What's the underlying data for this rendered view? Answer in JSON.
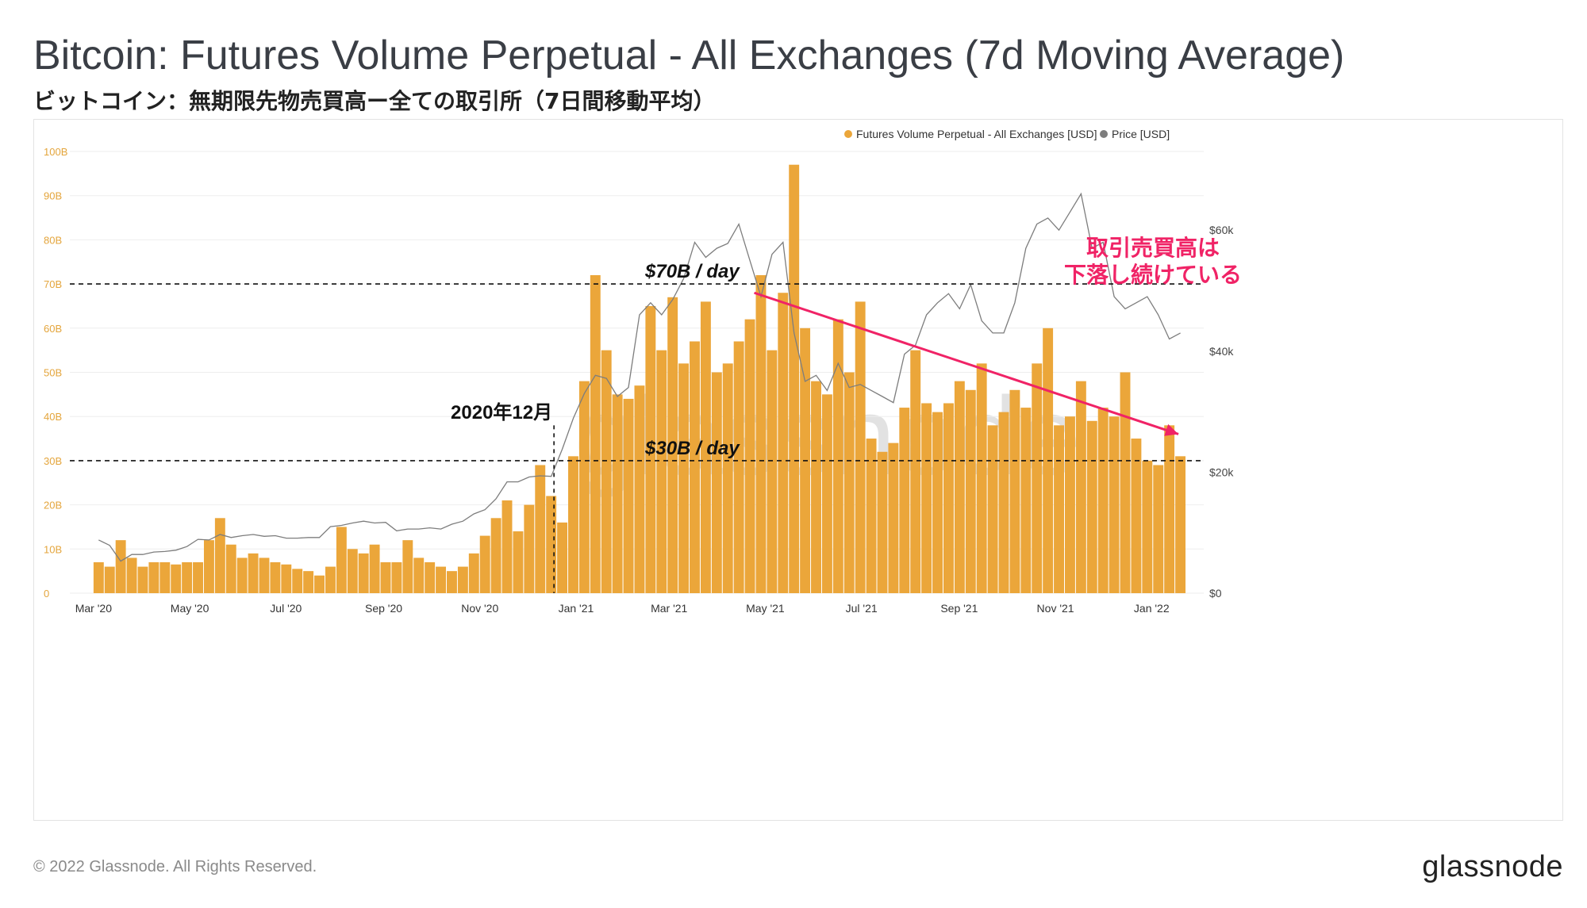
{
  "title": "Bitcoin: Futures Volume Perpetual - All Exchanges (7d Moving Average)",
  "subtitle": "ビットコイン：無期限先物売買高ー全ての取引所（7日間移動平均）",
  "footer": {
    "copyright": "© 2022 Glassnode. All Rights Reserved.",
    "logo": "glassnode"
  },
  "watermark": "glassnode",
  "colors": {
    "volume": "#eba63a",
    "price": "#7d7d7d",
    "trend_arrow": "#f02366",
    "annotation_text": "#f02366"
  },
  "chart_data": {
    "type": "bar",
    "legend_position": "top-right",
    "grid": true,
    "series": [
      {
        "name": "Futures Volume Perpetual - All Exchanges [USD]",
        "type": "bar",
        "axis": "left",
        "x": [
          "2020-03-01",
          "2020-03-08",
          "2020-03-15",
          "2020-03-22",
          "2020-03-29",
          "2020-04-05",
          "2020-04-12",
          "2020-04-19",
          "2020-04-26",
          "2020-05-03",
          "2020-05-10",
          "2020-05-17",
          "2020-05-24",
          "2020-05-31",
          "2020-06-07",
          "2020-06-14",
          "2020-06-21",
          "2020-06-28",
          "2020-07-05",
          "2020-07-12",
          "2020-07-19",
          "2020-07-26",
          "2020-08-02",
          "2020-08-09",
          "2020-08-16",
          "2020-08-23",
          "2020-08-30",
          "2020-09-06",
          "2020-09-13",
          "2020-09-20",
          "2020-09-27",
          "2020-10-04",
          "2020-10-11",
          "2020-10-18",
          "2020-10-25",
          "2020-11-01",
          "2020-11-08",
          "2020-11-15",
          "2020-11-22",
          "2020-11-29",
          "2020-12-06",
          "2020-12-13",
          "2020-12-20",
          "2020-12-27",
          "2021-01-03",
          "2021-01-10",
          "2021-01-17",
          "2021-01-24",
          "2021-01-31",
          "2021-02-07",
          "2021-02-14",
          "2021-02-21",
          "2021-02-28",
          "2021-03-07",
          "2021-03-14",
          "2021-03-21",
          "2021-03-28",
          "2021-04-04",
          "2021-04-11",
          "2021-04-18",
          "2021-04-25",
          "2021-05-02",
          "2021-05-09",
          "2021-05-16",
          "2021-05-23",
          "2021-05-30",
          "2021-06-06",
          "2021-06-13",
          "2021-06-20",
          "2021-06-27",
          "2021-07-04",
          "2021-07-11",
          "2021-07-18",
          "2021-07-25",
          "2021-08-01",
          "2021-08-08",
          "2021-08-15",
          "2021-08-22",
          "2021-08-29",
          "2021-09-05",
          "2021-09-12",
          "2021-09-19",
          "2021-09-26",
          "2021-10-03",
          "2021-10-10",
          "2021-10-17",
          "2021-10-24",
          "2021-10-31",
          "2021-11-07",
          "2021-11-14",
          "2021-11-21",
          "2021-11-28",
          "2021-12-05",
          "2021-12-12",
          "2021-12-19",
          "2021-12-26",
          "2022-01-02",
          "2022-01-09",
          "2022-01-16"
        ],
        "y": [
          7,
          6,
          12,
          8,
          6,
          7,
          7,
          6.5,
          7,
          7,
          12,
          17,
          11,
          8,
          9,
          8,
          7,
          6.5,
          5.5,
          5,
          4,
          6,
          15,
          10,
          9,
          11,
          7,
          7,
          12,
          8,
          7,
          6,
          5,
          6,
          9,
          13,
          17,
          21,
          14,
          20,
          29,
          22,
          16,
          31,
          48,
          72,
          55,
          45,
          44,
          47,
          65,
          55,
          67,
          52,
          57,
          66,
          50,
          52,
          57,
          62,
          72,
          55,
          68,
          97,
          60,
          48,
          45,
          62,
          50,
          66,
          35,
          32,
          34,
          42,
          55,
          43,
          41,
          43,
          48,
          46,
          52,
          38,
          41,
          46,
          42,
          52,
          60,
          38,
          40,
          48,
          39,
          42,
          40,
          50,
          35,
          30,
          29,
          38,
          31
        ]
      },
      {
        "name": "Price [USD]",
        "type": "line",
        "axis": "right",
        "x": [
          "2020-03-01",
          "2020-03-08",
          "2020-03-15",
          "2020-03-22",
          "2020-03-29",
          "2020-04-05",
          "2020-04-12",
          "2020-04-19",
          "2020-04-26",
          "2020-05-03",
          "2020-05-10",
          "2020-05-17",
          "2020-05-24",
          "2020-05-31",
          "2020-06-07",
          "2020-06-14",
          "2020-06-21",
          "2020-06-28",
          "2020-07-05",
          "2020-07-12",
          "2020-07-19",
          "2020-07-26",
          "2020-08-02",
          "2020-08-09",
          "2020-08-16",
          "2020-08-23",
          "2020-08-30",
          "2020-09-06",
          "2020-09-13",
          "2020-09-20",
          "2020-09-27",
          "2020-10-04",
          "2020-10-11",
          "2020-10-18",
          "2020-10-25",
          "2020-11-01",
          "2020-11-08",
          "2020-11-15",
          "2020-11-22",
          "2020-11-29",
          "2020-12-06",
          "2020-12-13",
          "2020-12-20",
          "2020-12-27",
          "2021-01-03",
          "2021-01-10",
          "2021-01-17",
          "2021-01-24",
          "2021-01-31",
          "2021-02-07",
          "2021-02-14",
          "2021-02-21",
          "2021-02-28",
          "2021-03-07",
          "2021-03-14",
          "2021-03-21",
          "2021-03-28",
          "2021-04-04",
          "2021-04-11",
          "2021-04-18",
          "2021-04-25",
          "2021-05-02",
          "2021-05-09",
          "2021-05-16",
          "2021-05-23",
          "2021-05-30",
          "2021-06-06",
          "2021-06-13",
          "2021-06-20",
          "2021-06-27",
          "2021-07-04",
          "2021-07-11",
          "2021-07-18",
          "2021-07-25",
          "2021-08-01",
          "2021-08-08",
          "2021-08-15",
          "2021-08-22",
          "2021-08-29",
          "2021-09-05",
          "2021-09-12",
          "2021-09-19",
          "2021-09-26",
          "2021-10-03",
          "2021-10-10",
          "2021-10-17",
          "2021-10-24",
          "2021-10-31",
          "2021-11-07",
          "2021-11-14",
          "2021-11-21",
          "2021-11-28",
          "2021-12-05",
          "2021-12-12",
          "2021-12-19",
          "2021-12-26",
          "2022-01-02",
          "2022-01-09",
          "2022-01-16"
        ],
        "y": [
          8800,
          7900,
          5300,
          6400,
          6400,
          6800,
          6900,
          7100,
          7700,
          8900,
          8800,
          9700,
          9200,
          9500,
          9700,
          9400,
          9500,
          9100,
          9100,
          9200,
          9200,
          11000,
          11200,
          11600,
          11900,
          11600,
          11700,
          10300,
          10600,
          10600,
          10800,
          10600,
          11400,
          11900,
          13100,
          13800,
          15600,
          18400,
          18400,
          19200,
          19400,
          19300,
          23800,
          28900,
          33000,
          36000,
          35500,
          32500,
          34000,
          46000,
          48000,
          46000,
          48500,
          52000,
          58000,
          55500,
          57000,
          57800,
          61000,
          55000,
          49000,
          56000,
          58000,
          43000,
          35000,
          36000,
          33500,
          38000,
          34000,
          34500,
          33500,
          32500,
          31500,
          39500,
          41000,
          46000,
          48000,
          49500,
          47000,
          51000,
          45000,
          43000,
          43000,
          48000,
          57000,
          61000,
          62000,
          60000,
          63000,
          66000,
          57000,
          58000,
          49000,
          47000,
          48000,
          49000,
          46000,
          42000,
          43000
        ]
      }
    ],
    "y_left": {
      "ticks": [
        "0",
        "10B",
        "20B",
        "30B",
        "40B",
        "50B",
        "60B",
        "70B",
        "80B",
        "90B",
        "100B"
      ],
      "range": [
        0,
        100
      ]
    },
    "y_right": {
      "ticks": [
        "$0",
        "$20k",
        "$40k",
        "$60k"
      ],
      "range": [
        0,
        73000
      ]
    },
    "x_ticks": [
      {
        "date": "2020-03-01",
        "label": "Mar '20"
      },
      {
        "date": "2020-05-01",
        "label": "May '20"
      },
      {
        "date": "2020-07-01",
        "label": "Jul '20"
      },
      {
        "date": "2020-09-01",
        "label": "Sep '20"
      },
      {
        "date": "2020-11-01",
        "label": "Nov '20"
      },
      {
        "date": "2021-01-01",
        "label": "Jan '21"
      },
      {
        "date": "2021-03-01",
        "label": "Mar '21"
      },
      {
        "date": "2021-05-01",
        "label": "May '21"
      },
      {
        "date": "2021-07-01",
        "label": "Jul '21"
      },
      {
        "date": "2021-09-01",
        "label": "Sep '21"
      },
      {
        "date": "2021-11-01",
        "label": "Nov '21"
      },
      {
        "date": "2022-01-01",
        "label": "Jan '22"
      }
    ],
    "x_range": [
      "2020-02-20",
      "2022-01-24"
    ],
    "annotations": {
      "hline_70": {
        "value": 70,
        "label": "$70B / day"
      },
      "hline_30": {
        "value": 30,
        "label": "$30B / day"
      },
      "vline": {
        "date": "2020-12-18",
        "label": "2020年12月"
      },
      "trend_arrow": {
        "from": {
          "date": "2021-04-24",
          "value": 68
        },
        "to": {
          "date": "2022-01-18",
          "value": 36
        }
      },
      "trend_note": [
        "取引売買高は",
        "下落し続けている"
      ]
    }
  }
}
